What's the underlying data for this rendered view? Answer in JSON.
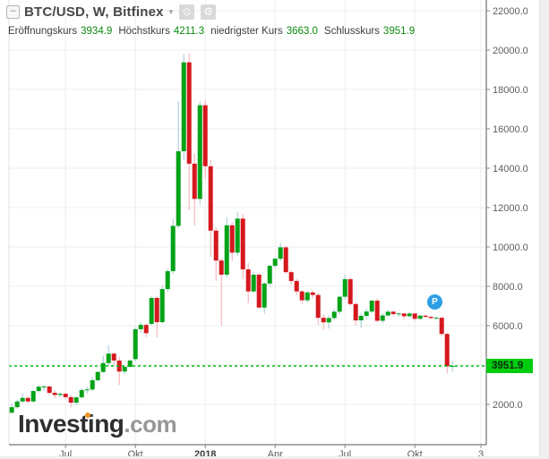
{
  "header": {
    "collapse_icon": "–",
    "title": "BTC/USD, W, Bitfinex",
    "dropdown_icon": "▾",
    "snapshot_icon": "⊙",
    "settings_icon": "⚙"
  },
  "legend": {
    "items": [
      {
        "label": "Eröffnungskurs",
        "value": "3934.9"
      },
      {
        "label": "Höchstkurs",
        "value": "4211.3"
      },
      {
        "label": "niedrigster Kurs",
        "value": "3663.0"
      },
      {
        "label": "Schlusskurs",
        "value": "3951.9"
      }
    ]
  },
  "watermark": {
    "name": "Investing",
    "tld": ".com"
  },
  "marker": {
    "label": "P"
  },
  "price_tag": {
    "value": "3951.9"
  },
  "axis": {
    "y_ticks": [
      {
        "label": "22000.0",
        "value": 22000
      },
      {
        "label": "20000.0",
        "value": 20000
      },
      {
        "label": "18000.0",
        "value": 18000
      },
      {
        "label": "16000.0",
        "value": 16000
      },
      {
        "label": "14000.0",
        "value": 14000
      },
      {
        "label": "12000.0",
        "value": 12000
      },
      {
        "label": "10000.0",
        "value": 10000
      },
      {
        "label": "8000.0",
        "value": 8000
      },
      {
        "label": "6000.0",
        "value": 6000
      },
      {
        "label": "2000.0",
        "value": 2000
      }
    ],
    "grid_levels": [
      2000,
      4000,
      6000,
      8000,
      10000,
      12000,
      14000,
      16000,
      18000,
      20000,
      22000
    ],
    "x_ticks": [
      {
        "label": "Jul",
        "week": 10,
        "bold": false
      },
      {
        "label": "Okt",
        "week": 23,
        "bold": false
      },
      {
        "label": "2018",
        "week": 36,
        "bold": true
      },
      {
        "label": "Apr",
        "week": 49,
        "bold": false
      },
      {
        "label": "Jul",
        "week": 62,
        "bold": false
      },
      {
        "label": "Okt",
        "week": 75,
        "bold": false
      },
      {
        "label": "3",
        "week": 87.3,
        "bold": false
      }
    ]
  },
  "chart_data": {
    "type": "candlestick",
    "title": "BTC/USD weekly candlestick chart, Bitfinex",
    "symbol": "BTC/USD",
    "interval": "W",
    "exchange": "Bitfinex",
    "current_price": 3951.9,
    "last_candle": {
      "open": 3934.9,
      "high": 4211.3,
      "low": 3663.0,
      "close": 3951.9
    },
    "y_range": [
      2000,
      22000
    ],
    "grid": true,
    "candles_ohlc": [
      [
        1580,
        2050,
        1530,
        1860
      ],
      [
        1860,
        2230,
        1790,
        2150
      ],
      [
        2150,
        2560,
        2080,
        2330
      ],
      [
        2330,
        2420,
        2050,
        2150
      ],
      [
        2150,
        2760,
        2100,
        2680
      ],
      [
        2680,
        2980,
        2600,
        2900
      ],
      [
        2900,
        2995,
        2700,
        2910
      ],
      [
        2910,
        2950,
        2480,
        2590
      ],
      [
        2590,
        2720,
        2320,
        2480
      ],
      [
        2480,
        2620,
        2380,
        2540
      ],
      [
        2540,
        2600,
        2280,
        2370
      ],
      [
        2370,
        2450,
        1850,
        2090
      ],
      [
        2090,
        2410,
        1940,
        2360
      ],
      [
        2360,
        2810,
        2330,
        2730
      ],
      [
        2730,
        2890,
        2560,
        2760
      ],
      [
        2760,
        3380,
        2680,
        3230
      ],
      [
        3230,
        3680,
        3150,
        3650
      ],
      [
        3650,
        4480,
        3600,
        4100
      ],
      [
        4100,
        4990,
        3990,
        4580
      ],
      [
        4580,
        4660,
        3950,
        4230
      ],
      [
        4230,
        4420,
        2980,
        3670
      ],
      [
        3670,
        3940,
        3520,
        3910
      ],
      [
        3910,
        4290,
        3860,
        4230
      ],
      [
        4300,
        5920,
        4190,
        5820
      ],
      [
        5820,
        6190,
        5650,
        6040
      ],
      [
        6040,
        6110,
        5420,
        5620
      ],
      [
        6090,
        7490,
        6010,
        7410
      ],
      [
        7410,
        7480,
        5410,
        6180
      ],
      [
        6180,
        8060,
        6110,
        7860
      ],
      [
        7860,
        8890,
        7720,
        8770
      ],
      [
        8770,
        11420,
        8620,
        11070
      ],
      [
        11070,
        17400,
        10950,
        14860
      ],
      [
        14860,
        19790,
        14450,
        19380
      ],
      [
        19380,
        19830,
        11860,
        14230
      ],
      [
        14230,
        14740,
        11100,
        12440
      ],
      [
        12440,
        17380,
        12160,
        17200
      ],
      [
        17200,
        17450,
        13460,
        14100
      ],
      [
        14100,
        14420,
        9490,
        10830
      ],
      [
        10830,
        11000,
        8270,
        9310
      ],
      [
        9310,
        9420,
        6000,
        8590
      ],
      [
        8590,
        11500,
        8450,
        11100
      ],
      [
        11100,
        11270,
        9280,
        9710
      ],
      [
        9710,
        11790,
        9540,
        11440
      ],
      [
        11440,
        11680,
        8370,
        8860
      ],
      [
        8860,
        9180,
        7150,
        7740
      ],
      [
        7740,
        8750,
        7650,
        8590
      ],
      [
        8590,
        8680,
        6870,
        6920
      ],
      [
        6920,
        8210,
        6600,
        8140
      ],
      [
        8140,
        9120,
        7970,
        9040
      ],
      [
        9040,
        9480,
        8910,
        9400
      ],
      [
        9400,
        10200,
        9290,
        9980
      ],
      [
        9980,
        10050,
        8650,
        8720
      ],
      [
        8720,
        8810,
        8110,
        8270
      ],
      [
        8270,
        8360,
        7560,
        7740
      ],
      [
        7740,
        7810,
        7090,
        7290
      ],
      [
        7290,
        7750,
        7160,
        7690
      ],
      [
        7690,
        7780,
        7380,
        7560
      ],
      [
        7560,
        7650,
        6050,
        6400
      ],
      [
        6400,
        6590,
        5790,
        6170
      ],
      [
        6170,
        6520,
        5850,
        6390
      ],
      [
        6390,
        6850,
        6310,
        6710
      ],
      [
        6710,
        7520,
        6590,
        7470
      ],
      [
        7470,
        8590,
        7330,
        8360
      ],
      [
        8360,
        8460,
        7020,
        7100
      ],
      [
        7100,
        7190,
        6020,
        6270
      ],
      [
        6270,
        6620,
        5880,
        6500
      ],
      [
        6500,
        6870,
        6330,
        6720
      ],
      [
        6720,
        7320,
        6640,
        7270
      ],
      [
        7270,
        7390,
        6180,
        6250
      ],
      [
        6250,
        6630,
        6120,
        6520
      ],
      [
        6520,
        6810,
        6430,
        6710
      ],
      [
        6710,
        6770,
        6480,
        6590
      ],
      [
        6590,
        6680,
        6450,
        6620
      ],
      [
        6620,
        6660,
        6320,
        6480
      ],
      [
        6480,
        6700,
        6410,
        6620
      ],
      [
        6620,
        6660,
        6250,
        6350
      ],
      [
        6350,
        6580,
        6290,
        6510
      ],
      [
        6510,
        6560,
        6380,
        6450
      ],
      [
        6450,
        6500,
        6340,
        6390
      ],
      [
        6390,
        6460,
        6330,
        6400
      ],
      [
        6400,
        6470,
        5450,
        5580
      ],
      [
        5580,
        5650,
        3560,
        3935
      ],
      [
        3934.9,
        4211.3,
        3663.0,
        3951.9
      ]
    ],
    "colors": {
      "up": "#00a316",
      "down": "#d5171e",
      "up_wick": "#9fc6d6",
      "down_wick": "#f2abb0",
      "grid": "#ededed",
      "axis_line": "#555555",
      "current_line": "#00c114",
      "tag_bg": "#00cc0f",
      "tick_text": "#5e5e5e"
    }
  }
}
